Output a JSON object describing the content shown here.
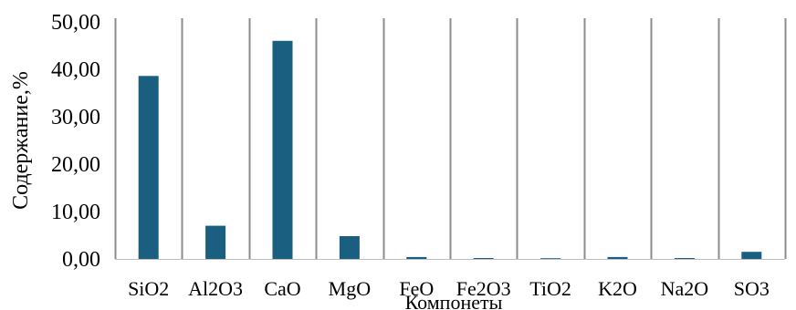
{
  "chart_data": {
    "type": "bar",
    "title": "",
    "xlabel": "Компонеты",
    "ylabel": "Содержание,%",
    "categories": [
      "SiO2",
      "Al2O3",
      "CaO",
      "MgO",
      "FeO",
      "Fe2O3",
      "TiO2",
      "K2O",
      "Na2O",
      "SO3"
    ],
    "values": [
      38.6,
      7.0,
      46.0,
      4.8,
      0.4,
      0.2,
      0.15,
      0.4,
      0.2,
      1.5
    ],
    "ylim": [
      0,
      50
    ],
    "yticks": [
      "0,00",
      "10,00",
      "20,00",
      "30,00",
      "40,00",
      "50,00"
    ],
    "grid": "vertical category separators",
    "legend": "none",
    "colors": {
      "bar": "#1a5f80",
      "separator": "#8c8c8c",
      "axis": "#bfbfbf"
    }
  }
}
